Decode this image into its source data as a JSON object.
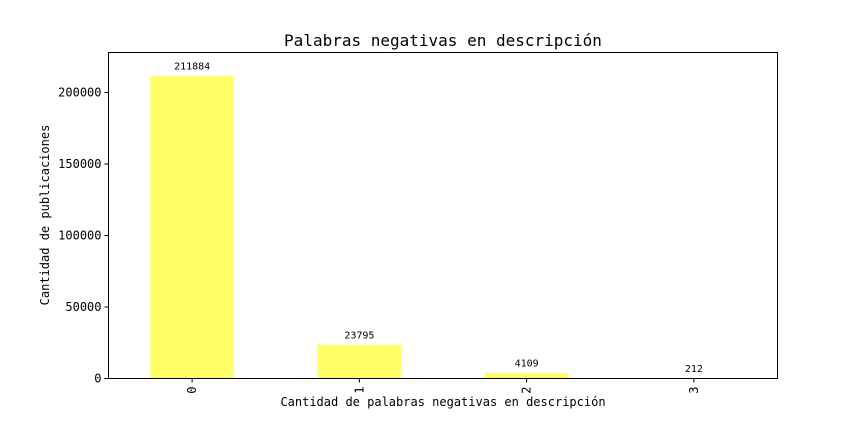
{
  "chart_data": {
    "type": "bar",
    "title": "Palabras negativas en descripción",
    "xlabel": "Cantidad de palabras negativas en descripción",
    "ylabel": "Cantidad de publicaciones",
    "categories": [
      "0",
      "1",
      "2",
      "3"
    ],
    "values": [
      211884,
      23795,
      4109,
      212
    ],
    "value_labels": [
      "211884",
      "23795",
      "4109",
      "212"
    ],
    "ylim": [
      0,
      228000
    ],
    "yticks": [
      0,
      50000,
      100000,
      150000,
      200000
    ],
    "ytick_labels": [
      "0",
      "50000",
      "100000",
      "150000",
      "200000"
    ],
    "bar_color": "#ffff66",
    "x_tick_rotation": "vertical",
    "grid": false,
    "legend": "none"
  }
}
